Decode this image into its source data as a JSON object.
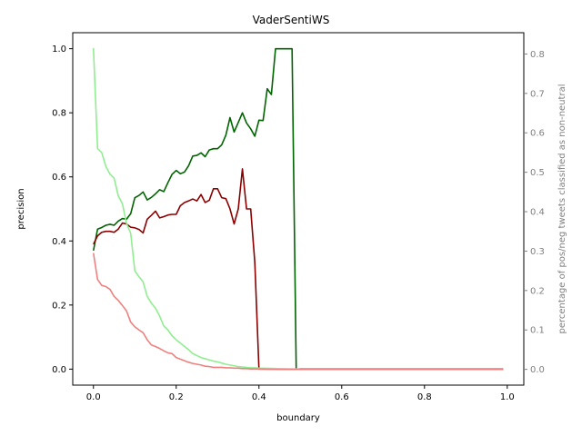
{
  "chart_data": {
    "type": "line",
    "title": "VaderSentiWS",
    "xlabel": "boundary",
    "ylabel": "precision",
    "ylabel_right": "percentage of pos/neg tweets classified as non-neutral",
    "xlim": [
      -0.05,
      1.04
    ],
    "ylim": [
      -0.05,
      1.05
    ],
    "ylim_right": [
      -0.04,
      0.854
    ],
    "x_ticks": [
      0.0,
      0.2,
      0.4,
      0.6,
      0.8,
      1.0
    ],
    "x_tick_labels": [
      "0.0",
      "0.2",
      "0.4",
      "0.6",
      "0.8",
      "1.0"
    ],
    "y_ticks": [
      0.0,
      0.2,
      0.4,
      0.6,
      0.8,
      1.0
    ],
    "y_tick_labels": [
      "0.0",
      "0.2",
      "0.4",
      "0.6",
      "0.8",
      "1.0"
    ],
    "y_ticks_right": [
      0.0,
      0.1,
      0.2,
      0.3,
      0.4,
      0.5,
      0.6,
      0.7,
      0.8
    ],
    "y_tick_labels_right": [
      "0.0",
      "0.1",
      "0.2",
      "0.3",
      "0.4",
      "0.5",
      "0.6",
      "0.7",
      "0.8"
    ],
    "grid": false,
    "series": [
      {
        "axis": "left",
        "color": "#006400",
        "points": [
          [
            0.0,
            0.37
          ],
          [
            0.01,
            0.437
          ],
          [
            0.02,
            0.442
          ],
          [
            0.03,
            0.449
          ],
          [
            0.04,
            0.452
          ],
          [
            0.05,
            0.449
          ],
          [
            0.06,
            0.462
          ],
          [
            0.07,
            0.47
          ],
          [
            0.08,
            0.468
          ],
          [
            0.09,
            0.485
          ],
          [
            0.1,
            0.535
          ],
          [
            0.11,
            0.542
          ],
          [
            0.12,
            0.553
          ],
          [
            0.13,
            0.528
          ],
          [
            0.14,
            0.536
          ],
          [
            0.15,
            0.547
          ],
          [
            0.16,
            0.56
          ],
          [
            0.17,
            0.554
          ],
          [
            0.18,
            0.582
          ],
          [
            0.19,
            0.608
          ],
          [
            0.2,
            0.62
          ],
          [
            0.21,
            0.61
          ],
          [
            0.22,
            0.615
          ],
          [
            0.23,
            0.635
          ],
          [
            0.24,
            0.665
          ],
          [
            0.25,
            0.667
          ],
          [
            0.26,
            0.675
          ],
          [
            0.27,
            0.663
          ],
          [
            0.28,
            0.684
          ],
          [
            0.29,
            0.688
          ],
          [
            0.3,
            0.688
          ],
          [
            0.31,
            0.7
          ],
          [
            0.32,
            0.73
          ],
          [
            0.33,
            0.785
          ],
          [
            0.34,
            0.74
          ],
          [
            0.35,
            0.77
          ],
          [
            0.36,
            0.8
          ],
          [
            0.37,
            0.768
          ],
          [
            0.38,
            0.75
          ],
          [
            0.39,
            0.727
          ],
          [
            0.4,
            0.777
          ],
          [
            0.41,
            0.776
          ],
          [
            0.42,
            0.875
          ],
          [
            0.43,
            0.857
          ],
          [
            0.44,
            1.0
          ],
          [
            0.45,
            1.0
          ],
          [
            0.46,
            1.0
          ],
          [
            0.47,
            1.0
          ],
          [
            0.48,
            1.0
          ],
          [
            0.49,
            0.0
          ],
          [
            0.5,
            0.0
          ],
          [
            0.6,
            0.0
          ],
          [
            0.7,
            0.0
          ],
          [
            0.8,
            0.0
          ],
          [
            0.9,
            0.0
          ],
          [
            0.99,
            0.0
          ]
        ]
      },
      {
        "axis": "left",
        "color": "#8b0000",
        "points": [
          [
            0.0,
            0.39
          ],
          [
            0.01,
            0.416
          ],
          [
            0.02,
            0.427
          ],
          [
            0.03,
            0.43
          ],
          [
            0.04,
            0.43
          ],
          [
            0.05,
            0.427
          ],
          [
            0.06,
            0.437
          ],
          [
            0.07,
            0.456
          ],
          [
            0.08,
            0.453
          ],
          [
            0.09,
            0.443
          ],
          [
            0.1,
            0.441
          ],
          [
            0.11,
            0.436
          ],
          [
            0.12,
            0.425
          ],
          [
            0.13,
            0.468
          ],
          [
            0.14,
            0.48
          ],
          [
            0.15,
            0.493
          ],
          [
            0.16,
            0.472
          ],
          [
            0.17,
            0.476
          ],
          [
            0.18,
            0.481
          ],
          [
            0.19,
            0.483
          ],
          [
            0.2,
            0.483
          ],
          [
            0.21,
            0.51
          ],
          [
            0.22,
            0.52
          ],
          [
            0.23,
            0.525
          ],
          [
            0.24,
            0.531
          ],
          [
            0.25,
            0.525
          ],
          [
            0.26,
            0.545
          ],
          [
            0.27,
            0.52
          ],
          [
            0.28,
            0.527
          ],
          [
            0.29,
            0.563
          ],
          [
            0.3,
            0.563
          ],
          [
            0.31,
            0.535
          ],
          [
            0.32,
            0.532
          ],
          [
            0.33,
            0.5
          ],
          [
            0.34,
            0.453
          ],
          [
            0.35,
            0.5
          ],
          [
            0.36,
            0.625
          ],
          [
            0.37,
            0.5
          ],
          [
            0.38,
            0.5
          ],
          [
            0.39,
            0.333
          ],
          [
            0.4,
            0.0
          ],
          [
            0.41,
            0.0
          ],
          [
            0.5,
            0.0
          ],
          [
            0.6,
            0.0
          ],
          [
            0.7,
            0.0
          ],
          [
            0.8,
            0.0
          ],
          [
            0.9,
            0.0
          ],
          [
            0.99,
            0.0
          ]
        ]
      },
      {
        "axis": "right",
        "color": "#90ee90",
        "points": [
          [
            0.0,
            0.815
          ],
          [
            0.01,
            0.56
          ],
          [
            0.02,
            0.55
          ],
          [
            0.03,
            0.515
          ],
          [
            0.04,
            0.495
          ],
          [
            0.05,
            0.485
          ],
          [
            0.06,
            0.44
          ],
          [
            0.07,
            0.42
          ],
          [
            0.08,
            0.37
          ],
          [
            0.09,
            0.345
          ],
          [
            0.1,
            0.25
          ],
          [
            0.11,
            0.235
          ],
          [
            0.12,
            0.222
          ],
          [
            0.13,
            0.185
          ],
          [
            0.14,
            0.168
          ],
          [
            0.15,
            0.155
          ],
          [
            0.16,
            0.135
          ],
          [
            0.17,
            0.11
          ],
          [
            0.18,
            0.1
          ],
          [
            0.19,
            0.085
          ],
          [
            0.2,
            0.075
          ],
          [
            0.21,
            0.067
          ],
          [
            0.22,
            0.058
          ],
          [
            0.23,
            0.05
          ],
          [
            0.24,
            0.04
          ],
          [
            0.25,
            0.035
          ],
          [
            0.26,
            0.03
          ],
          [
            0.27,
            0.027
          ],
          [
            0.28,
            0.024
          ],
          [
            0.29,
            0.021
          ],
          [
            0.3,
            0.019
          ],
          [
            0.31,
            0.016
          ],
          [
            0.32,
            0.013
          ],
          [
            0.33,
            0.011
          ],
          [
            0.34,
            0.009
          ],
          [
            0.35,
            0.007
          ],
          [
            0.36,
            0.006
          ],
          [
            0.37,
            0.005
          ],
          [
            0.38,
            0.004
          ],
          [
            0.39,
            0.004
          ],
          [
            0.4,
            0.003
          ],
          [
            0.45,
            0.002
          ],
          [
            0.49,
            0.001
          ],
          [
            0.5,
            0.0
          ],
          [
            0.6,
            0.0
          ],
          [
            0.7,
            0.0
          ],
          [
            0.8,
            0.0
          ],
          [
            0.9,
            0.0
          ],
          [
            0.99,
            0.0
          ]
        ]
      },
      {
        "axis": "right",
        "color": "#f08080",
        "points": [
          [
            0.0,
            0.295
          ],
          [
            0.01,
            0.228
          ],
          [
            0.02,
            0.213
          ],
          [
            0.03,
            0.21
          ],
          [
            0.04,
            0.203
          ],
          [
            0.05,
            0.185
          ],
          [
            0.06,
            0.175
          ],
          [
            0.07,
            0.162
          ],
          [
            0.08,
            0.148
          ],
          [
            0.09,
            0.12
          ],
          [
            0.1,
            0.108
          ],
          [
            0.11,
            0.1
          ],
          [
            0.12,
            0.093
          ],
          [
            0.13,
            0.075
          ],
          [
            0.14,
            0.062
          ],
          [
            0.15,
            0.058
          ],
          [
            0.16,
            0.053
          ],
          [
            0.17,
            0.047
          ],
          [
            0.18,
            0.042
          ],
          [
            0.19,
            0.04
          ],
          [
            0.2,
            0.03
          ],
          [
            0.21,
            0.026
          ],
          [
            0.22,
            0.022
          ],
          [
            0.23,
            0.018
          ],
          [
            0.24,
            0.015
          ],
          [
            0.25,
            0.013
          ],
          [
            0.26,
            0.011
          ],
          [
            0.27,
            0.008
          ],
          [
            0.28,
            0.007
          ],
          [
            0.29,
            0.005
          ],
          [
            0.3,
            0.005
          ],
          [
            0.31,
            0.005
          ],
          [
            0.32,
            0.004
          ],
          [
            0.33,
            0.004
          ],
          [
            0.34,
            0.003
          ],
          [
            0.35,
            0.003
          ],
          [
            0.36,
            0.002
          ],
          [
            0.37,
            0.002
          ],
          [
            0.38,
            0.001
          ],
          [
            0.39,
            0.001
          ],
          [
            0.4,
            0.001
          ],
          [
            0.45,
            0.0
          ],
          [
            0.5,
            0.0
          ],
          [
            0.6,
            0.0
          ],
          [
            0.7,
            0.0
          ],
          [
            0.8,
            0.0
          ],
          [
            0.9,
            0.0
          ],
          [
            0.99,
            0.0
          ]
        ]
      }
    ]
  }
}
